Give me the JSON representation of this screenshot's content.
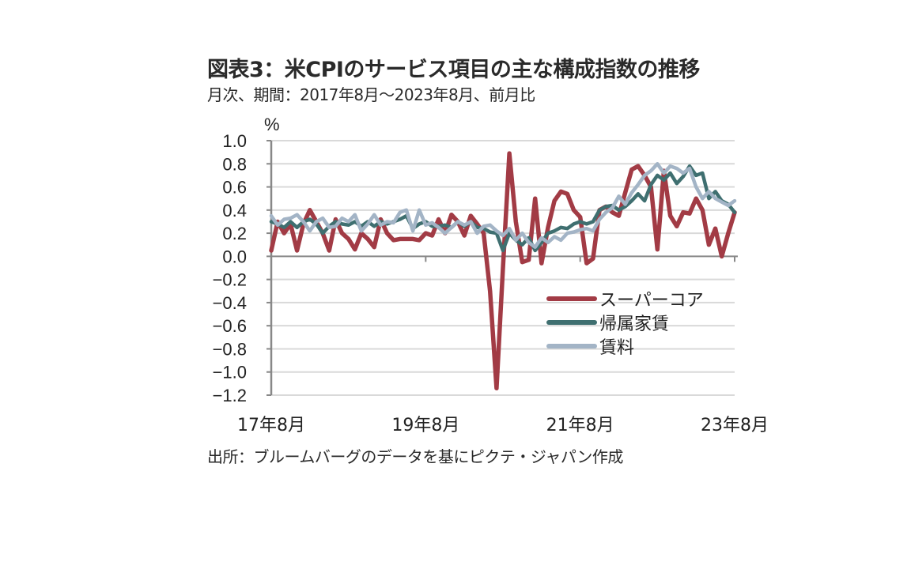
{
  "title": "図表3：米CPIのサービス項目の主な構成指数の推移",
  "subtitle": "月次、期間：2017年8月～2023年8月、前月比",
  "source": "出所：ブルームバーグのデータを基にピクテ・ジャパン作成",
  "colors": {
    "supercore": "#a23b45",
    "oer": "#3f6f70",
    "rent": "#a3b4c6",
    "grid": "#d9d9d9",
    "axis": "#888888"
  },
  "chart_data": {
    "type": "line",
    "title": "図表3：米CPIのサービス項目の主な構成指数の推移",
    "subtitle": "月次、期間：2017年8月～2023年8月、前月比",
    "xlabel": "",
    "ylabel": "%",
    "ylim": [
      -1.2,
      1.0
    ],
    "yticks": [
      "1.0",
      "0.8",
      "0.6",
      "0.4",
      "0.2",
      "0.0",
      "-0.2",
      "-0.4",
      "-0.6",
      "-0.8",
      "-1.0",
      "-1.2"
    ],
    "xticks": [
      "17年8月",
      "19年8月",
      "21年8月",
      "23年8月"
    ],
    "grid": true,
    "legend_position": "lower-right inside plot",
    "x_start": "2017-08",
    "x_end": "2023-08",
    "frequency": "monthly",
    "series": [
      {
        "name": "スーパーコア",
        "values": [
          0.05,
          0.3,
          0.2,
          0.28,
          0.05,
          0.28,
          0.4,
          0.3,
          0.2,
          0.05,
          0.32,
          0.2,
          0.15,
          0.06,
          0.2,
          0.15,
          0.08,
          0.32,
          0.2,
          0.14,
          0.15,
          0.15,
          0.15,
          0.14,
          0.2,
          0.18,
          0.32,
          0.2,
          0.36,
          0.3,
          0.18,
          0.35,
          0.28,
          0.2,
          -0.3,
          -1.14,
          -0.1,
          0.89,
          0.3,
          -0.05,
          -0.03,
          0.5,
          -0.06,
          0.25,
          0.48,
          0.56,
          0.54,
          0.4,
          0.34,
          -0.06,
          -0.02,
          0.4,
          0.43,
          0.38,
          0.35,
          0.55,
          0.75,
          0.78,
          0.7,
          0.6,
          0.06,
          0.74,
          0.35,
          0.26,
          0.38,
          0.37,
          0.5,
          0.4,
          0.1,
          0.24,
          0.0,
          0.2,
          0.38
        ]
      },
      {
        "name": "帰属家賃",
        "values": [
          0.3,
          0.28,
          0.25,
          0.3,
          0.25,
          0.3,
          0.32,
          0.28,
          0.2,
          0.26,
          0.3,
          0.28,
          0.27,
          0.3,
          0.26,
          0.3,
          0.26,
          0.3,
          0.28,
          0.3,
          0.32,
          0.35,
          0.24,
          0.28,
          0.3,
          0.26,
          0.26,
          0.27,
          0.25,
          0.3,
          0.26,
          0.3,
          0.25,
          0.24,
          0.21,
          0.2,
          0.05,
          0.2,
          0.14,
          0.1,
          0.16,
          0.05,
          0.12,
          0.2,
          0.22,
          0.25,
          0.24,
          0.28,
          0.3,
          0.28,
          0.3,
          0.4,
          0.43,
          0.44,
          0.4,
          0.43,
          0.48,
          0.54,
          0.48,
          0.62,
          0.7,
          0.66,
          0.72,
          0.63,
          0.69,
          0.78,
          0.7,
          0.72,
          0.5,
          0.56,
          0.48,
          0.45,
          0.38
        ]
      },
      {
        "name": "賃料",
        "values": [
          0.35,
          0.27,
          0.32,
          0.33,
          0.36,
          0.3,
          0.22,
          0.3,
          0.33,
          0.25,
          0.26,
          0.33,
          0.3,
          0.36,
          0.22,
          0.28,
          0.36,
          0.27,
          0.3,
          0.29,
          0.38,
          0.4,
          0.22,
          0.4,
          0.27,
          0.29,
          0.25,
          0.2,
          0.25,
          0.3,
          0.27,
          0.3,
          0.2,
          0.26,
          0.27,
          0.22,
          0.18,
          0.24,
          0.14,
          0.2,
          0.12,
          0.08,
          0.16,
          0.12,
          0.17,
          0.14,
          0.2,
          0.21,
          0.23,
          0.24,
          0.22,
          0.32,
          0.38,
          0.42,
          0.52,
          0.45,
          0.55,
          0.62,
          0.7,
          0.74,
          0.8,
          0.72,
          0.78,
          0.76,
          0.72,
          0.76,
          0.6,
          0.5,
          0.56,
          0.5,
          0.47,
          0.44,
          0.48
        ]
      }
    ]
  },
  "axis": {
    "y_unit": "%",
    "y_ticks": [
      "1.0",
      "0.8",
      "0.6",
      "0.4",
      "0.2",
      "0.0",
      "-0.2",
      "-0.4",
      "-0.6",
      "-0.8",
      "-1.0",
      "-1.2"
    ],
    "x_ticks": [
      "17年8月",
      "19年8月",
      "21年8月",
      "23年8月"
    ]
  },
  "legend": [
    "スーパーコア",
    "帰属家賃",
    "賃料"
  ]
}
